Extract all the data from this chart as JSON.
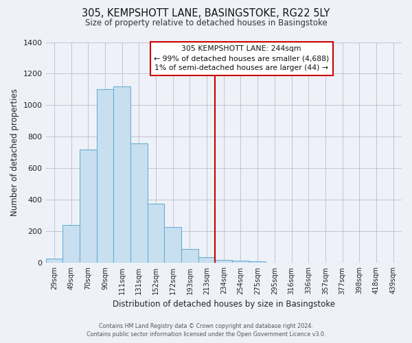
{
  "title": "305, KEMPSHOTT LANE, BASINGSTOKE, RG22 5LY",
  "subtitle": "Size of property relative to detached houses in Basingstoke",
  "xlabel": "Distribution of detached houses by size in Basingstoke",
  "ylabel": "Number of detached properties",
  "bar_labels": [
    "29sqm",
    "49sqm",
    "70sqm",
    "90sqm",
    "111sqm",
    "131sqm",
    "152sqm",
    "172sqm",
    "193sqm",
    "213sqm",
    "234sqm",
    "254sqm",
    "275sqm",
    "295sqm",
    "316sqm",
    "336sqm",
    "357sqm",
    "377sqm",
    "398sqm",
    "418sqm",
    "439sqm"
  ],
  "bar_values": [
    30,
    240,
    720,
    1100,
    1120,
    760,
    375,
    228,
    90,
    35,
    20,
    15,
    10,
    0,
    0,
    0,
    0,
    0,
    0,
    0,
    0
  ],
  "bar_color": "#c8dff0",
  "bar_edge_color": "#6aaed6",
  "ylim": [
    0,
    1400
  ],
  "yticks": [
    0,
    200,
    400,
    600,
    800,
    1000,
    1200,
    1400
  ],
  "vline_x_index": 9.5,
  "vline_color": "#cc0000",
  "annotation_title": "305 KEMPSHOTT LANE: 244sqm",
  "annotation_line1": "← 99% of detached houses are smaller (4,688)",
  "annotation_line2": "1% of semi-detached houses are larger (44) →",
  "footer_line1": "Contains HM Land Registry data © Crown copyright and database right 2024.",
  "footer_line2": "Contains public sector information licensed under the Open Government Licence v3.0.",
  "background_color": "#eef2f8",
  "plot_bg_color": "#eef2f8",
  "grid_color": "#bbbbcc"
}
